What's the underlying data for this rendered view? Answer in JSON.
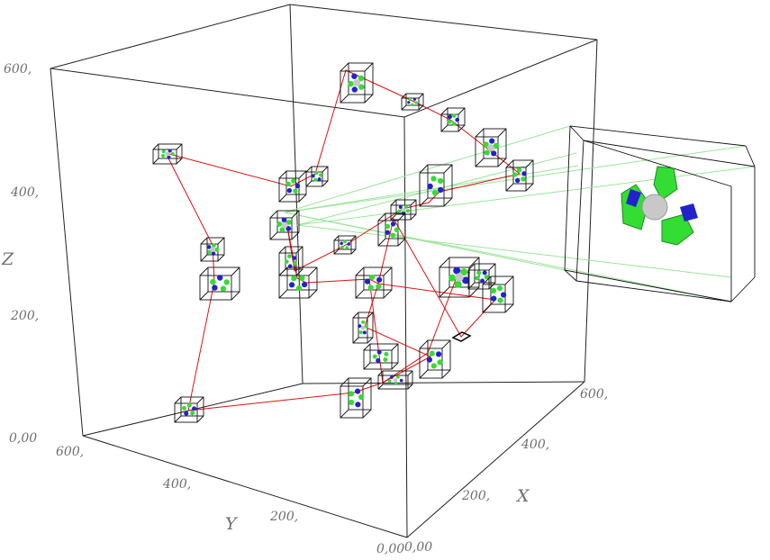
{
  "axes": {
    "z_ticks": [
      "600,",
      "400,",
      "200,",
      "0,00"
    ],
    "y_ticks": [
      "600,",
      "400,",
      "200,",
      "0,00"
    ],
    "x_ticks": [
      "600,",
      "400,",
      "200,",
      "0,00"
    ],
    "z_title": "Z",
    "y_title": "Y",
    "x_title": "X"
  },
  "colors": {
    "trajectory": "#e01010",
    "cluster_green": "#33dd33",
    "cluster_blue": "#2222cc",
    "center_sphere": "#c8c8c8",
    "frame": "#222222",
    "zoom_lines": "#9be59b"
  }
}
